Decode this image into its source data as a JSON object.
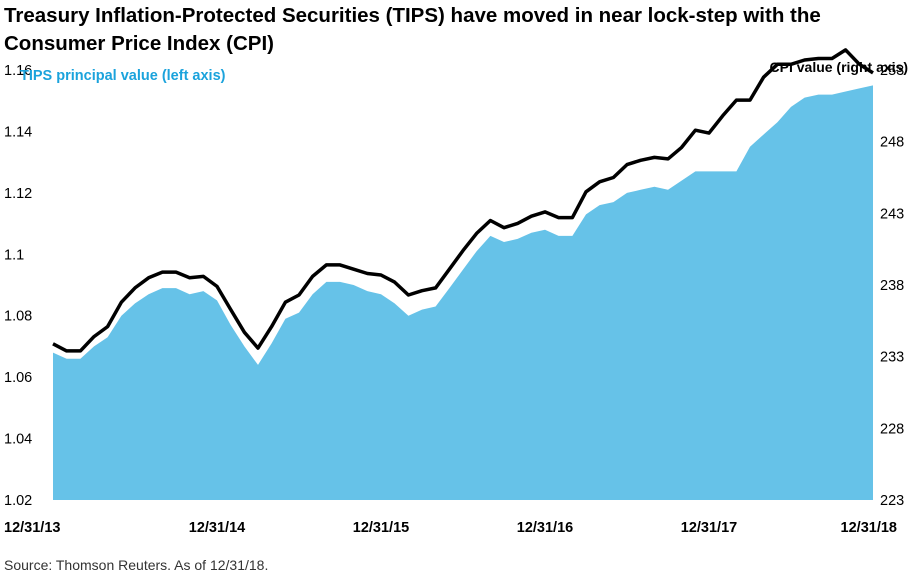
{
  "title": "Treasury Inflation-Protected Securities (TIPS) have moved in near lock-step with the Consumer Price Index (CPI)",
  "source": "Source: Thomson Reuters. As of 12/31/18.",
  "colors": {
    "area": "#66c2e8",
    "line": "#000000",
    "left_legend": "#1ba3dc"
  },
  "chart_data": {
    "type": "area",
    "legend": [
      {
        "name": "TIPS principal value (left axis)",
        "style": "filled area",
        "axis": "left",
        "color": "#66c2e8"
      },
      {
        "name": "CPI value (right axis)",
        "style": "line",
        "axis": "right",
        "color": "#000000"
      }
    ],
    "x_tick_labels": [
      "12/31/13",
      "12/31/14",
      "12/31/15",
      "12/31/16",
      "12/31/17",
      "12/31/18"
    ],
    "left_axis": {
      "ticks": [
        "1.16",
        "1.14",
        "1.12",
        "1.1",
        "1.08",
        "1.06",
        "1.04",
        "1.02"
      ],
      "ylim": [
        1.02,
        1.16
      ]
    },
    "right_axis": {
      "ticks": [
        "253",
        "248",
        "243",
        "238",
        "233",
        "228",
        "223"
      ],
      "ylim": [
        223,
        253
      ]
    },
    "x_years": [
      2014.0,
      2014.083,
      2014.167,
      2014.25,
      2014.333,
      2014.417,
      2014.5,
      2014.583,
      2014.667,
      2014.75,
      2014.833,
      2014.917,
      2015.0,
      2015.083,
      2015.167,
      2015.25,
      2015.333,
      2015.417,
      2015.5,
      2015.583,
      2015.667,
      2015.75,
      2015.833,
      2015.917,
      2016.0,
      2016.083,
      2016.167,
      2016.25,
      2016.333,
      2016.417,
      2016.5,
      2016.583,
      2016.667,
      2016.75,
      2016.833,
      2016.917,
      2017.0,
      2017.083,
      2017.167,
      2017.25,
      2017.333,
      2017.417,
      2017.5,
      2017.583,
      2017.667,
      2017.75,
      2017.833,
      2017.917,
      2018.0,
      2018.083,
      2018.167,
      2018.25,
      2018.333,
      2018.417,
      2018.5,
      2018.583,
      2018.667,
      2018.75,
      2018.833,
      2018.917,
      2019.0
    ],
    "series": [
      {
        "name": "TIPS principal value (left axis)",
        "type": "area",
        "axis": "left",
        "values": [
          1.068,
          1.066,
          1.066,
          1.07,
          1.073,
          1.08,
          1.084,
          1.087,
          1.089,
          1.089,
          1.087,
          1.088,
          1.085,
          1.077,
          1.07,
          1.064,
          1.071,
          1.079,
          1.081,
          1.087,
          1.091,
          1.091,
          1.09,
          1.088,
          1.087,
          1.084,
          1.08,
          1.082,
          1.083,
          1.089,
          1.095,
          1.101,
          1.106,
          1.104,
          1.105,
          1.107,
          1.108,
          1.106,
          1.106,
          1.113,
          1.116,
          1.117,
          1.12,
          1.121,
          1.122,
          1.121,
          1.124,
          1.127,
          1.127,
          1.127,
          1.127,
          1.135,
          1.139,
          1.143,
          1.148,
          1.151,
          1.152,
          1.152,
          1.153,
          1.154,
          1.155
        ]
      },
      {
        "name": "CPI value (right axis)",
        "type": "line",
        "axis": "right",
        "values": [
          233.9,
          233.4,
          233.4,
          234.4,
          235.1,
          236.8,
          237.8,
          238.5,
          238.9,
          238.9,
          238.5,
          238.6,
          237.9,
          236.3,
          234.7,
          233.6,
          235.1,
          236.8,
          237.3,
          238.6,
          239.4,
          239.4,
          239.1,
          238.8,
          238.7,
          238.2,
          237.3,
          237.6,
          237.8,
          239.1,
          240.4,
          241.6,
          242.5,
          242.0,
          242.3,
          242.8,
          243.1,
          242.7,
          242.7,
          244.5,
          245.2,
          245.5,
          246.4,
          246.7,
          246.9,
          246.8,
          247.6,
          248.8,
          248.6,
          249.8,
          250.9,
          250.9,
          252.5,
          253.4,
          253.4,
          253.7,
          253.8,
          253.8,
          254.4,
          253.4,
          252.8
        ]
      }
    ]
  }
}
